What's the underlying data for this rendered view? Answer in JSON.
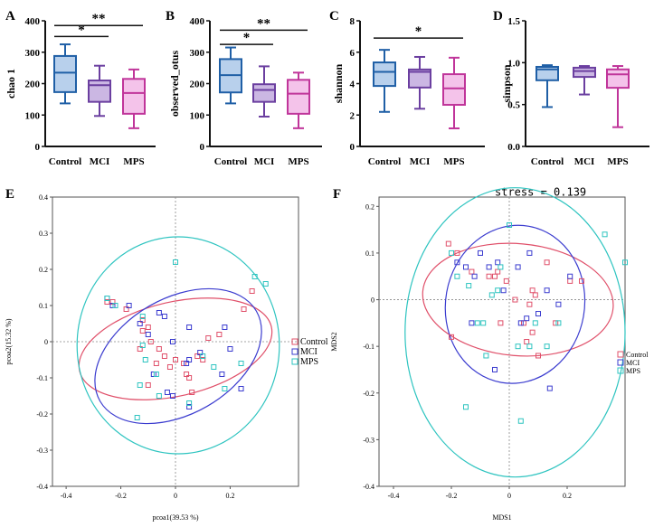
{
  "panels": {
    "A": {
      "letter": "A",
      "ylabel": "chao 1",
      "ylim": [
        0,
        400
      ],
      "yticks": [
        "0",
        "100",
        "200",
        "300",
        "400"
      ],
      "categories": [
        "Control",
        "MCI",
        "MPS"
      ],
      "boxes": [
        {
          "name": "Control",
          "min": 137,
          "q1": 173,
          "median": 235,
          "q3": 288,
          "max": 325
        },
        {
          "name": "MCI",
          "min": 97,
          "q1": 142,
          "median": 195,
          "q3": 210,
          "max": 257
        },
        {
          "name": "MPS",
          "min": 58,
          "q1": 104,
          "median": 170,
          "q3": 215,
          "max": 245
        }
      ],
      "sig": [
        {
          "from": 0,
          "to": 1,
          "y": 350,
          "label": "*"
        },
        {
          "from": 0,
          "to": 2,
          "y": 385,
          "label": "**"
        }
      ]
    },
    "B": {
      "letter": "B",
      "ylabel": "observed_otus",
      "ylim": [
        0,
        400
      ],
      "yticks": [
        "0",
        "100",
        "200",
        "300",
        "400"
      ],
      "categories": [
        "Control",
        "MCI",
        "MPS"
      ],
      "boxes": [
        {
          "name": "Control",
          "min": 137,
          "q1": 172,
          "median": 227,
          "q3": 278,
          "max": 315
        },
        {
          "name": "MCI",
          "min": 95,
          "q1": 142,
          "median": 180,
          "q3": 198,
          "max": 255
        },
        {
          "name": "MPS",
          "min": 58,
          "q1": 104,
          "median": 168,
          "q3": 212,
          "max": 235
        }
      ],
      "sig": [
        {
          "from": 0,
          "to": 1,
          "y": 325,
          "label": "*"
        },
        {
          "from": 0,
          "to": 2,
          "y": 370,
          "label": "**"
        }
      ]
    },
    "C": {
      "letter": "C",
      "ylabel": "shannon",
      "ylim": [
        0,
        8
      ],
      "yticks": [
        "0",
        "2",
        "4",
        "6",
        "8"
      ],
      "categories": [
        "Control",
        "MCI",
        "MPS"
      ],
      "boxes": [
        {
          "name": "Control",
          "min": 2.2,
          "q1": 3.85,
          "median": 4.75,
          "q3": 5.35,
          "max": 6.15
        },
        {
          "name": "MCI",
          "min": 2.4,
          "q1": 3.75,
          "median": 4.75,
          "q3": 4.9,
          "max": 5.7
        },
        {
          "name": "MPS",
          "min": 1.15,
          "q1": 2.65,
          "median": 3.7,
          "q3": 4.6,
          "max": 5.65
        }
      ],
      "sig": [
        {
          "from": 0,
          "to": 2,
          "y": 6.9,
          "label": "*"
        }
      ]
    },
    "D": {
      "letter": "D",
      "ylabel": "simpson",
      "ylim": [
        0,
        1.5
      ],
      "yticks": [
        "0.0",
        "0.5",
        "1.0",
        "1.5"
      ],
      "categories": [
        "Control",
        "MCI",
        "MPS"
      ],
      "boxes": [
        {
          "name": "Control",
          "min": 0.47,
          "q1": 0.79,
          "median": 0.92,
          "q3": 0.95,
          "max": 0.97
        },
        {
          "name": "MCI",
          "min": 0.62,
          "q1": 0.83,
          "median": 0.9,
          "q3": 0.94,
          "max": 0.96
        },
        {
          "name": "MPS",
          "min": 0.23,
          "q1": 0.7,
          "median": 0.86,
          "q3": 0.92,
          "max": 0.96
        }
      ],
      "sig": []
    },
    "E": {
      "letter": "E",
      "xlabel": "pcoa1(39.53 %)",
      "ylabel": "pcoa2(15.32 %)",
      "xticks": [
        "-0.4",
        "-0.2",
        "0",
        "0.2"
      ],
      "yticks": [
        "-0.4",
        "-0.3",
        "-0.2",
        "-0.1",
        "0",
        "0.1",
        "0.2",
        "0.3",
        "0.4"
      ],
      "legend": [
        "Control",
        "MCI",
        "MPS"
      ]
    },
    "F": {
      "letter": "F",
      "xlabel": "MDS1",
      "ylabel": "MDS2",
      "annotation": "stress = 0.139",
      "xticks": [
        "-0.4",
        "-0.2",
        "0",
        "0.2"
      ],
      "yticks": [
        "-0.4",
        "-0.3",
        "-0.2",
        "-0.1",
        "0",
        "0.1",
        "0.2"
      ],
      "legend": [
        "Control",
        "MCI",
        "MPS"
      ]
    }
  },
  "colors": {
    "Control": "#1f5fa6",
    "MCI": "#6b3fa0",
    "MPS": "#c0359a",
    "Control_fill": "#b8d0ec",
    "MCI_fill": "#cbb7e3",
    "MPS_fill": "#f4c3ea",
    "ord_control": "#e0506a",
    "ord_mci": "#3b3ccf",
    "ord_mps": "#2ec4c0"
  },
  "chart_data": [
    {
      "type": "box",
      "panel": "A",
      "categories": [
        "Control",
        "MCI",
        "MPS"
      ],
      "ylabel": "chao 1",
      "ylim": [
        0,
        400
      ],
      "series": [
        {
          "name": "Control",
          "min": 137,
          "q1": 173,
          "median": 235,
          "q3": 288,
          "max": 325
        },
        {
          "name": "MCI",
          "min": 97,
          "q1": 142,
          "median": 195,
          "q3": 210,
          "max": 257
        },
        {
          "name": "MPS",
          "min": 58,
          "q1": 104,
          "median": 170,
          "q3": 215,
          "max": 245
        }
      ]
    },
    {
      "type": "box",
      "panel": "B",
      "categories": [
        "Control",
        "MCI",
        "MPS"
      ],
      "ylabel": "observed_otus",
      "ylim": [
        0,
        400
      ],
      "series": [
        {
          "name": "Control",
          "min": 137,
          "q1": 172,
          "median": 227,
          "q3": 278,
          "max": 315
        },
        {
          "name": "MCI",
          "min": 95,
          "q1": 142,
          "median": 180,
          "q3": 198,
          "max": 255
        },
        {
          "name": "MPS",
          "min": 58,
          "q1": 104,
          "median": 168,
          "q3": 212,
          "max": 235
        }
      ]
    },
    {
      "type": "box",
      "panel": "C",
      "categories": [
        "Control",
        "MCI",
        "MPS"
      ],
      "ylabel": "shannon",
      "ylim": [
        0,
        8
      ],
      "series": [
        {
          "name": "Control",
          "min": 2.2,
          "q1": 3.85,
          "median": 4.75,
          "q3": 5.35,
          "max": 6.15
        },
        {
          "name": "MCI",
          "min": 2.4,
          "q1": 3.75,
          "median": 4.75,
          "q3": 4.9,
          "max": 5.7
        },
        {
          "name": "MPS",
          "min": 1.15,
          "q1": 2.65,
          "median": 3.7,
          "q3": 4.6,
          "max": 5.65
        }
      ]
    },
    {
      "type": "box",
      "panel": "D",
      "categories": [
        "Control",
        "MCI",
        "MPS"
      ],
      "ylabel": "simpson",
      "ylim": [
        0,
        1.5
      ],
      "series": [
        {
          "name": "Control",
          "min": 0.47,
          "q1": 0.79,
          "median": 0.92,
          "q3": 0.95,
          "max": 0.97
        },
        {
          "name": "MCI",
          "min": 0.62,
          "q1": 0.83,
          "median": 0.9,
          "q3": 0.94,
          "max": 0.96
        },
        {
          "name": "MPS",
          "min": 0.23,
          "q1": 0.7,
          "median": 0.86,
          "q3": 0.92,
          "max": 0.96
        }
      ]
    },
    {
      "type": "scatter",
      "panel": "E",
      "xlabel": "pcoa1(39.53 %)",
      "ylabel": "pcoa2(15.32 %)",
      "xlim": [
        -0.45,
        0.45
      ],
      "ylim": [
        -0.4,
        0.4
      ],
      "grid": false,
      "legend": "right",
      "series": [
        {
          "name": "Control",
          "points": [
            [
              -0.25,
              0.11
            ],
            [
              -0.23,
              0.11
            ],
            [
              -0.18,
              0.09
            ],
            [
              -0.12,
              0.06
            ],
            [
              -0.1,
              0.04
            ],
            [
              -0.12,
              0.03
            ],
            [
              -0.09,
              0.0
            ],
            [
              -0.13,
              -0.02
            ],
            [
              -0.07,
              -0.06
            ],
            [
              -0.04,
              -0.04
            ],
            [
              -0.06,
              -0.02
            ],
            [
              -0.02,
              -0.07
            ],
            [
              0.0,
              -0.05
            ],
            [
              0.03,
              -0.06
            ],
            [
              0.04,
              -0.09
            ],
            [
              0.05,
              -0.1
            ],
            [
              0.08,
              -0.04
            ],
            [
              0.1,
              -0.05
            ],
            [
              0.12,
              0.01
            ],
            [
              0.16,
              0.02
            ],
            [
              0.25,
              0.09
            ],
            [
              0.28,
              0.14
            ],
            [
              -0.1,
              -0.12
            ],
            [
              0.06,
              -0.14
            ]
          ]
        },
        {
          "name": "MCI",
          "points": [
            [
              -0.23,
              0.1
            ],
            [
              -0.17,
              0.1
            ],
            [
              -0.13,
              0.05
            ],
            [
              -0.1,
              0.02
            ],
            [
              -0.06,
              0.08
            ],
            [
              -0.04,
              0.07
            ],
            [
              0.05,
              0.04
            ],
            [
              -0.01,
              0.0
            ],
            [
              0.04,
              -0.06
            ],
            [
              0.05,
              -0.05
            ],
            [
              -0.01,
              -0.15
            ],
            [
              -0.08,
              -0.09
            ],
            [
              -0.03,
              -0.14
            ],
            [
              0.05,
              -0.18
            ],
            [
              0.09,
              -0.03
            ],
            [
              0.17,
              -0.09
            ],
            [
              0.18,
              0.04
            ],
            [
              0.2,
              -0.02
            ],
            [
              0.24,
              -0.13
            ],
            [
              -0.25,
              0.12
            ]
          ]
        },
        {
          "name": "MPS",
          "points": [
            [
              0.0,
              0.22
            ],
            [
              -0.25,
              0.12
            ],
            [
              -0.12,
              0.07
            ],
            [
              -0.12,
              -0.01
            ],
            [
              -0.11,
              -0.05
            ],
            [
              -0.13,
              -0.12
            ],
            [
              -0.07,
              -0.09
            ],
            [
              -0.06,
              -0.15
            ],
            [
              -0.14,
              -0.21
            ],
            [
              0.05,
              -0.17
            ],
            [
              0.1,
              -0.04
            ],
            [
              0.14,
              -0.07
            ],
            [
              0.18,
              -0.13
            ],
            [
              0.24,
              -0.06
            ],
            [
              0.29,
              0.18
            ],
            [
              0.33,
              0.16
            ],
            [
              -0.22,
              0.1
            ]
          ]
        }
      ],
      "ellipses": [
        {
          "name": "Control",
          "cx": 0.0,
          "cy": -0.02,
          "rx": 0.36,
          "ry": 0.13,
          "angle": 13
        },
        {
          "name": "MCI",
          "cx": 0.01,
          "cy": -0.04,
          "rx": 0.33,
          "ry": 0.16,
          "angle": 30
        },
        {
          "name": "MPS",
          "cx": 0.01,
          "cy": -0.01,
          "rx": 0.37,
          "ry": 0.3,
          "angle": 0
        }
      ]
    },
    {
      "type": "scatter",
      "panel": "F",
      "xlabel": "MDS1",
      "ylabel": "MDS2",
      "annotation": "stress = 0.139",
      "xlim": [
        -0.45,
        0.4
      ],
      "ylim": [
        -0.4,
        0.22
      ],
      "grid": false,
      "legend": "right",
      "series": [
        {
          "name": "Control",
          "points": [
            [
              -0.21,
              0.12
            ],
            [
              -0.18,
              0.1
            ],
            [
              -0.13,
              0.06
            ],
            [
              -0.07,
              0.05
            ],
            [
              -0.05,
              0.05
            ],
            [
              -0.04,
              0.06
            ],
            [
              -0.01,
              0.04
            ],
            [
              0.02,
              0.0
            ],
            [
              0.05,
              -0.05
            ],
            [
              0.07,
              -0.01
            ],
            [
              0.08,
              0.02
            ],
            [
              0.09,
              0.01
            ],
            [
              0.08,
              -0.07
            ],
            [
              0.06,
              -0.09
            ],
            [
              0.13,
              0.08
            ],
            [
              0.16,
              -0.05
            ],
            [
              0.21,
              0.04
            ],
            [
              0.25,
              0.04
            ],
            [
              -0.2,
              -0.08
            ],
            [
              -0.03,
              -0.05
            ],
            [
              0.1,
              -0.12
            ]
          ]
        },
        {
          "name": "MCI",
          "points": [
            [
              -0.18,
              0.08
            ],
            [
              -0.15,
              0.07
            ],
            [
              -0.12,
              0.05
            ],
            [
              -0.1,
              0.1
            ],
            [
              -0.07,
              0.07
            ],
            [
              -0.04,
              0.08
            ],
            [
              -0.02,
              0.02
            ],
            [
              0.03,
              0.07
            ],
            [
              0.07,
              0.1
            ],
            [
              0.06,
              -0.04
            ],
            [
              0.04,
              -0.05
            ],
            [
              0.1,
              -0.03
            ],
            [
              0.13,
              0.02
            ],
            [
              0.17,
              -0.01
            ],
            [
              0.14,
              -0.19
            ],
            [
              -0.05,
              -0.15
            ],
            [
              0.21,
              0.05
            ],
            [
              -0.13,
              -0.05
            ]
          ]
        },
        {
          "name": "MPS",
          "points": [
            [
              -0.2,
              0.1
            ],
            [
              -0.18,
              0.05
            ],
            [
              -0.14,
              0.03
            ],
            [
              -0.11,
              -0.05
            ],
            [
              -0.09,
              -0.05
            ],
            [
              -0.06,
              0.01
            ],
            [
              -0.04,
              0.02
            ],
            [
              -0.03,
              0.07
            ],
            [
              0.0,
              0.16
            ],
            [
              0.03,
              -0.1
            ],
            [
              0.07,
              -0.1
            ],
            [
              0.09,
              -0.05
            ],
            [
              0.13,
              -0.1
            ],
            [
              0.17,
              -0.05
            ],
            [
              0.33,
              0.14
            ],
            [
              0.4,
              0.08
            ],
            [
              -0.08,
              -0.12
            ],
            [
              -0.15,
              -0.23
            ],
            [
              0.04,
              -0.26
            ]
          ]
        }
      ],
      "ellipses": [
        {
          "name": "Control",
          "cx": 0.03,
          "cy": 0.0,
          "rx": 0.33,
          "ry": 0.12,
          "angle": -5
        },
        {
          "name": "MCI",
          "cx": 0.02,
          "cy": -0.01,
          "rx": 0.24,
          "ry": 0.17,
          "angle": -10
        },
        {
          "name": "MPS",
          "cx": 0.02,
          "cy": -0.07,
          "rx": 0.38,
          "ry": 0.31,
          "angle": 0
        }
      ]
    }
  ]
}
